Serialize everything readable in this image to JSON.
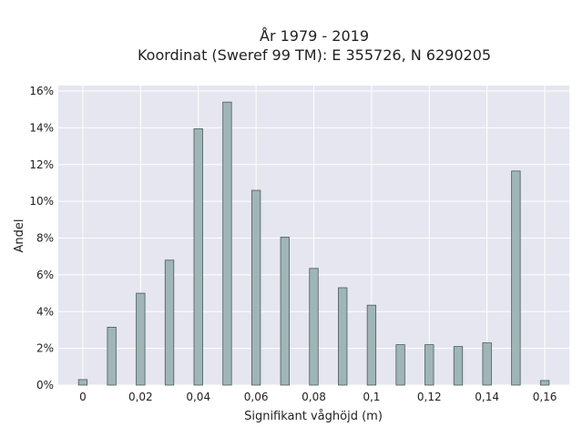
{
  "chart_data": {
    "type": "bar",
    "title": "År 1979 - 2019",
    "subtitle": "Koordinat (Sweref 99 TM): E 355726, N 6290205",
    "xlabel": "Signifikant våghöjd (m)",
    "ylabel": "Andel",
    "x": [
      0,
      0.01,
      0.02,
      0.03,
      0.04,
      0.05,
      0.06,
      0.07,
      0.08,
      0.09,
      0.1,
      0.11,
      0.12,
      0.13,
      0.14,
      0.15,
      0.16
    ],
    "values": [
      0.3,
      3.15,
      5.0,
      6.8,
      13.95,
      15.4,
      10.6,
      8.05,
      6.35,
      5.3,
      4.35,
      2.2,
      2.2,
      2.1,
      2.3,
      11.65,
      0.25
    ],
    "xlim": [
      -0.0085,
      0.1685
    ],
    "ylim": [
      0,
      16.3
    ],
    "x_ticks": [
      0,
      0.02,
      0.04,
      0.06,
      0.08,
      0.1,
      0.12,
      0.14,
      0.16
    ],
    "x_tick_labels": [
      "0",
      "0,02",
      "0,04",
      "0,06",
      "0,08",
      "0,1",
      "0,12",
      "0,14",
      "0,16"
    ],
    "y_ticks": [
      0,
      2,
      4,
      6,
      8,
      10,
      12,
      14,
      16
    ],
    "y_tick_labels": [
      "0%",
      "2%",
      "4%",
      "6%",
      "8%",
      "10%",
      "12%",
      "14%",
      "16%"
    ],
    "bar_width": 0.003,
    "grid": true,
    "colors": {
      "plot_background": "#e5e6ef",
      "grid": "#ffffff",
      "bar_fill": "#9fb5b8",
      "bar_stroke": "#4a5a5c"
    }
  }
}
